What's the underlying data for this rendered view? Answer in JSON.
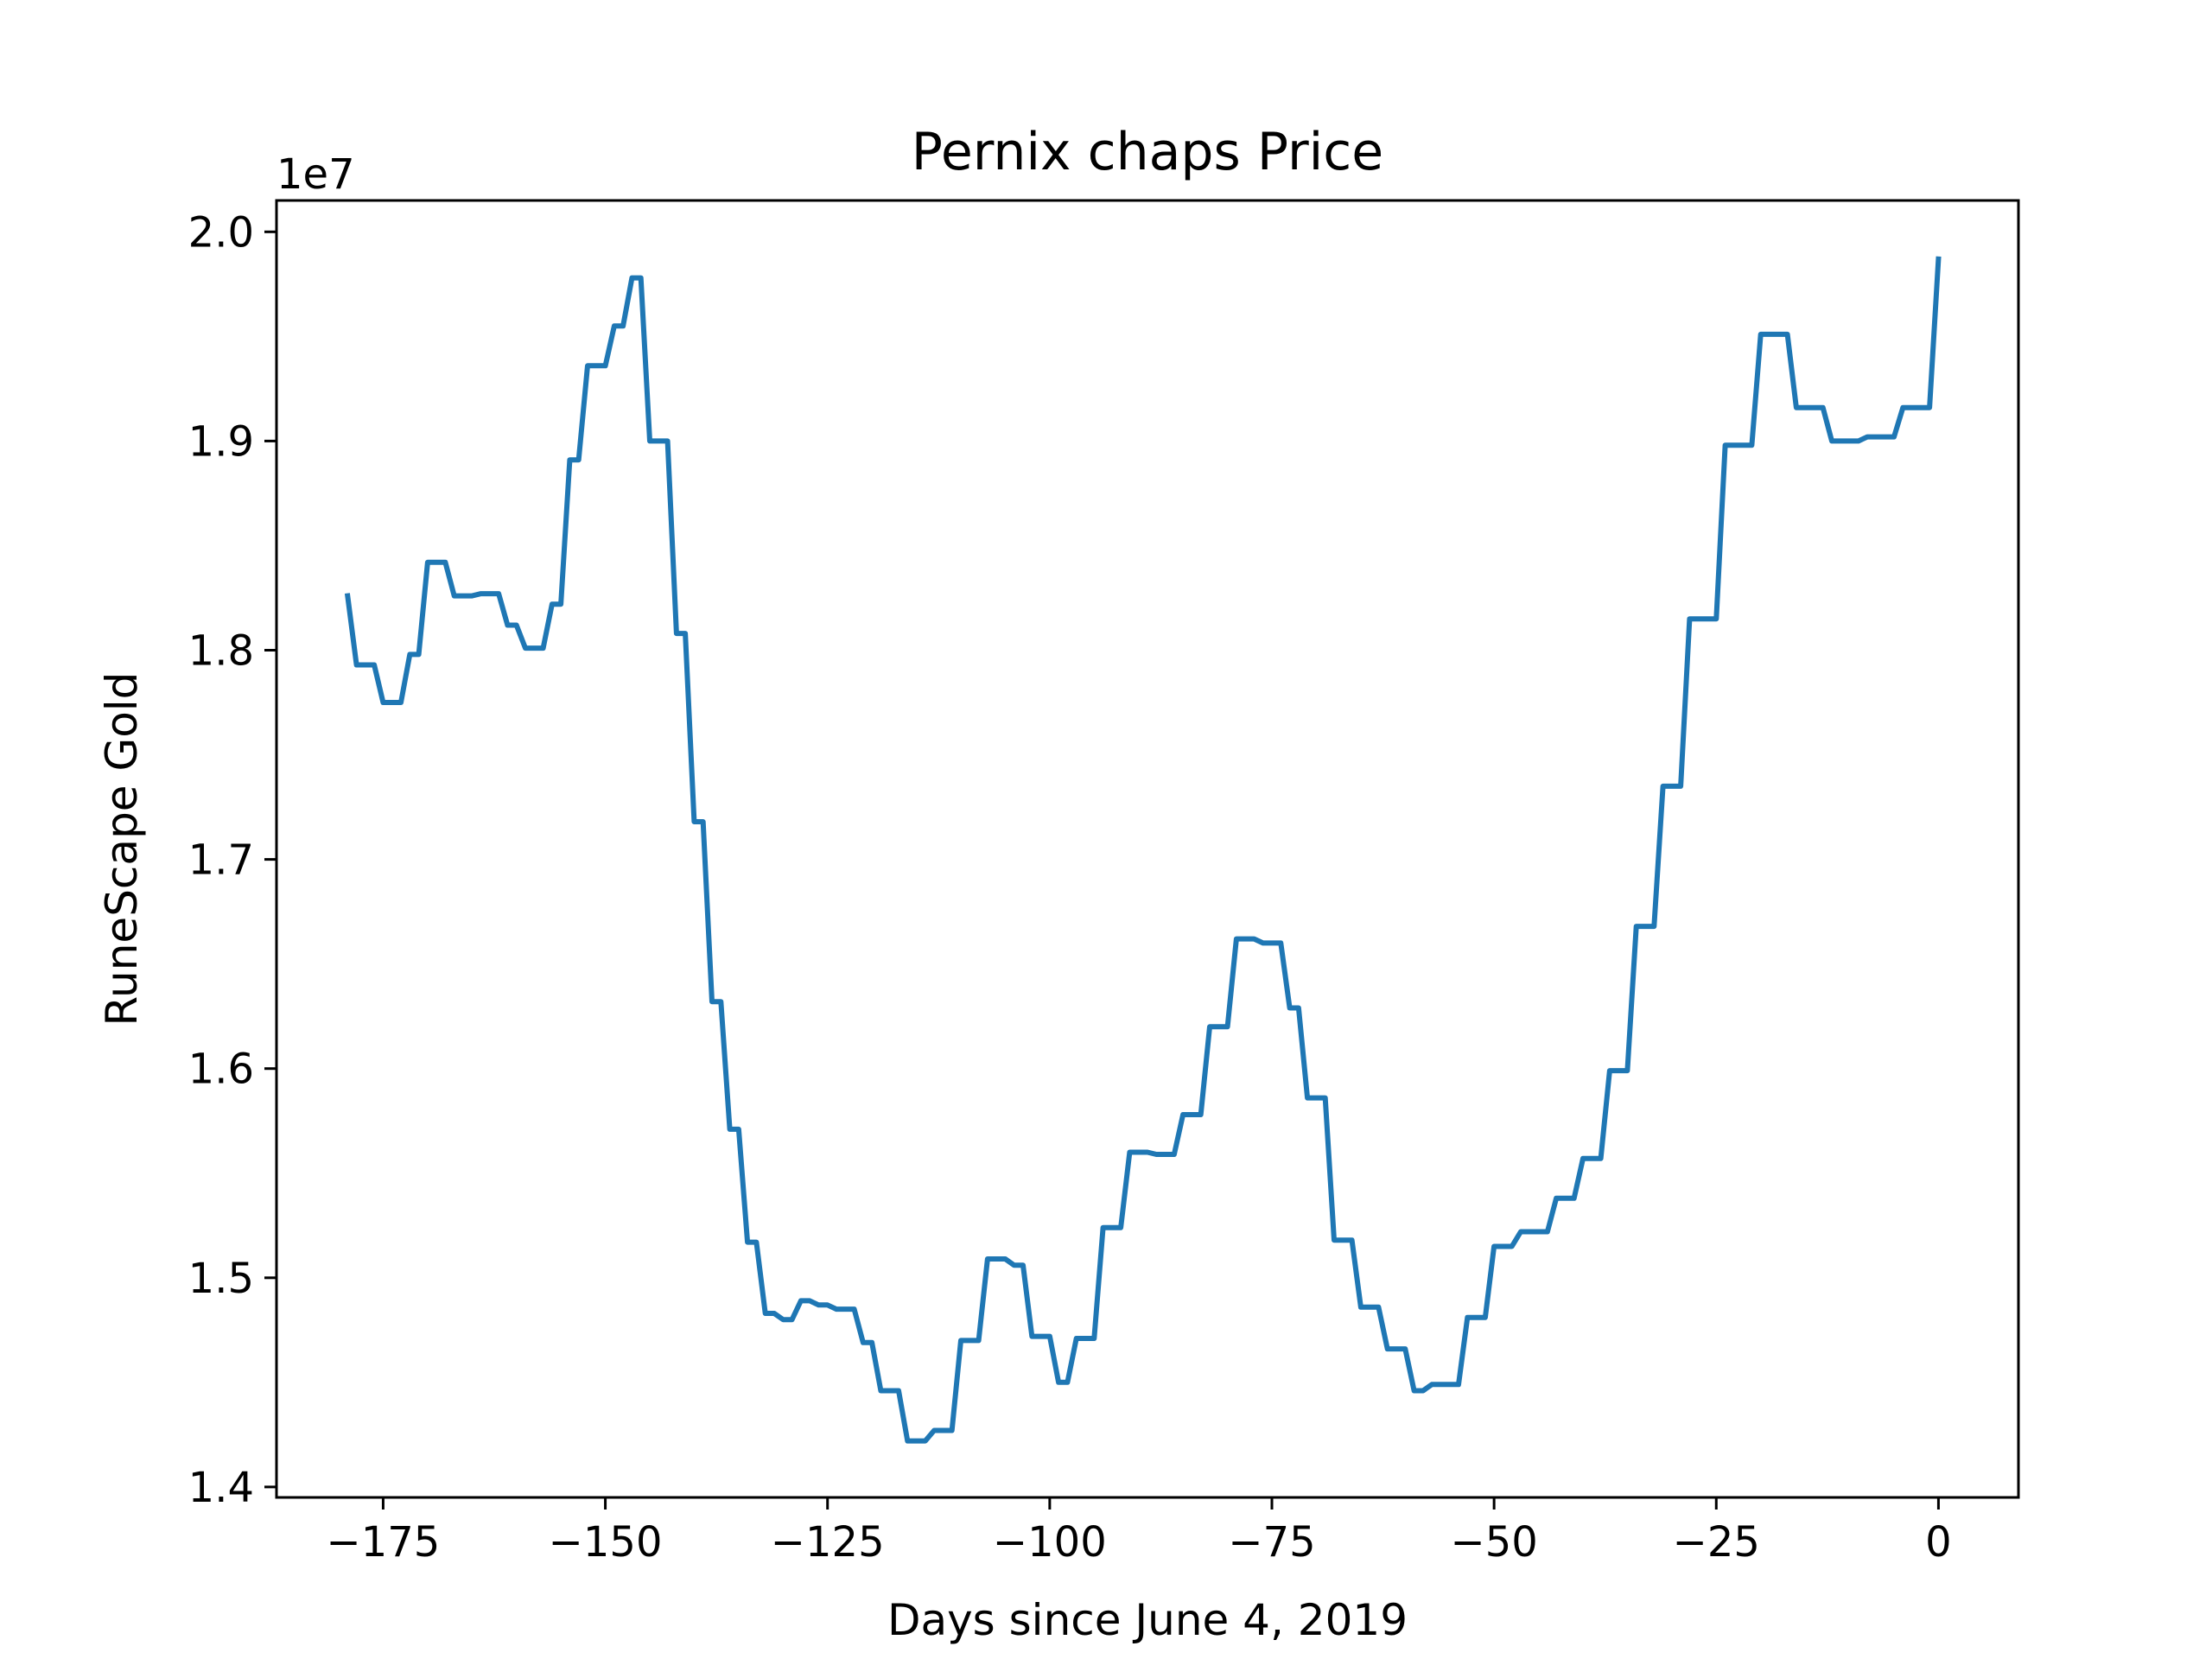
{
  "chart_data": {
    "type": "line",
    "title": "Pernix chaps Price",
    "xlabel": "Days since June 4, 2019",
    "ylabel": "RuneScape Gold",
    "y_offset_label": "1e7",
    "xlim": [
      -187,
      9
    ],
    "ylim": [
      13950000,
      20150000
    ],
    "xticks": [
      -175,
      -150,
      -125,
      -100,
      -75,
      -50,
      -25,
      0
    ],
    "xtick_labels": [
      "−175",
      "−150",
      "−125",
      "−100",
      "−75",
      "−50",
      "−25",
      "0"
    ],
    "yticks": [
      14000000,
      15000000,
      16000000,
      17000000,
      18000000,
      19000000,
      20000000
    ],
    "ytick_labels": [
      "1.4",
      "1.5",
      "1.6",
      "1.7",
      "1.8",
      "1.9",
      "2.0"
    ],
    "grid": false,
    "series": [
      {
        "color": "#1f77b4",
        "x": [
          -179,
          -178,
          -177,
          -176,
          -175,
          -174,
          -173,
          -172,
          -171,
          -170,
          -169,
          -168,
          -167,
          -166,
          -165,
          -164,
          -163,
          -162,
          -161,
          -160,
          -159,
          -158,
          -157,
          -156,
          -155,
          -154,
          -153,
          -152,
          -151,
          -150,
          -149,
          -148,
          -147,
          -146,
          -145,
          -144,
          -143,
          -142,
          -141,
          -140,
          -139,
          -138,
          -137,
          -136,
          -135,
          -134,
          -133,
          -132,
          -131,
          -130,
          -129,
          -128,
          -127,
          -126,
          -125,
          -124,
          -123,
          -122,
          -121,
          -120,
          -119,
          -118,
          -117,
          -116,
          -115,
          -114,
          -113,
          -112,
          -111,
          -110,
          -109,
          -108,
          -107,
          -106,
          -105,
          -104,
          -103,
          -102,
          -101,
          -100,
          -99,
          -98,
          -97,
          -96,
          -95,
          -94,
          -93,
          -92,
          -91,
          -90,
          -89,
          -88,
          -87,
          -86,
          -85,
          -84,
          -83,
          -82,
          -81,
          -80,
          -79,
          -78,
          -77,
          -76,
          -75,
          -74,
          -73,
          -72,
          -71,
          -70,
          -69,
          -68,
          -67,
          -66,
          -65,
          -64,
          -63,
          -62,
          -61,
          -60,
          -59,
          -58,
          -57,
          -56,
          -55,
          -54,
          -53,
          -52,
          -51,
          -50,
          -49,
          -48,
          -47,
          -46,
          -45,
          -44,
          -43,
          -42,
          -41,
          -40,
          -39,
          -38,
          -37,
          -36,
          -35,
          -34,
          -33,
          -32,
          -31,
          -30,
          -29,
          -28,
          -27,
          -26,
          -25,
          -24,
          -23,
          -22,
          -21,
          -20,
          -19,
          -18,
          -17,
          -16,
          -15,
          -14,
          -13,
          -12,
          -11,
          -10,
          -9,
          -8,
          -7,
          -6,
          -5,
          -4,
          -3,
          -2,
          -1,
          0
        ],
        "y": [
          18260000,
          17930000,
          17930000,
          17930000,
          17750000,
          17750000,
          17750000,
          17980000,
          17980000,
          18420000,
          18420000,
          18420000,
          18260000,
          18260000,
          18260000,
          18270000,
          18270000,
          18270000,
          18120000,
          18120000,
          18010000,
          18010000,
          18010000,
          18220000,
          18220000,
          18910000,
          18910000,
          19360000,
          19360000,
          19360000,
          19550000,
          19550000,
          19780000,
          19780000,
          19000000,
          19000000,
          19000000,
          18080000,
          18080000,
          17180000,
          17180000,
          16320000,
          16320000,
          15710000,
          15710000,
          15170000,
          15170000,
          14830000,
          14830000,
          14800000,
          14800000,
          14890000,
          14890000,
          14870000,
          14870000,
          14850000,
          14850000,
          14850000,
          14690000,
          14690000,
          14460000,
          14460000,
          14460000,
          14220000,
          14220000,
          14220000,
          14270000,
          14270000,
          14270000,
          14700000,
          14700000,
          14700000,
          15090000,
          15090000,
          15090000,
          15060000,
          15060000,
          14720000,
          14720000,
          14720000,
          14500000,
          14500000,
          14710000,
          14710000,
          14710000,
          15240000,
          15240000,
          15240000,
          15600000,
          15600000,
          15600000,
          15590000,
          15590000,
          15590000,
          15780000,
          15780000,
          15780000,
          16200000,
          16200000,
          16200000,
          16620000,
          16620000,
          16620000,
          16600000,
          16600000,
          16600000,
          16290000,
          16290000,
          15860000,
          15860000,
          15860000,
          15180000,
          15180000,
          15180000,
          14860000,
          14860000,
          14860000,
          14660000,
          14660000,
          14660000,
          14460000,
          14460000,
          14490000,
          14490000,
          14490000,
          14490000,
          14810000,
          14810000,
          14810000,
          15150000,
          15150000,
          15150000,
          15220000,
          15220000,
          15220000,
          15220000,
          15380000,
          15380000,
          15380000,
          15570000,
          15570000,
          15570000,
          15990000,
          15990000,
          15990000,
          16680000,
          16680000,
          16680000,
          17350000,
          17350000,
          17350000,
          18150000,
          18150000,
          18150000,
          18150000,
          18980000,
          18980000,
          18980000,
          18980000,
          19510000,
          19510000,
          19510000,
          19510000,
          19160000,
          19160000,
          19160000,
          19160000,
          19000000,
          19000000,
          19000000,
          19000000,
          19020000,
          19020000,
          19020000,
          19020000,
          19160000,
          19160000,
          19160000,
          19160000,
          19870000
        ]
      }
    ]
  }
}
